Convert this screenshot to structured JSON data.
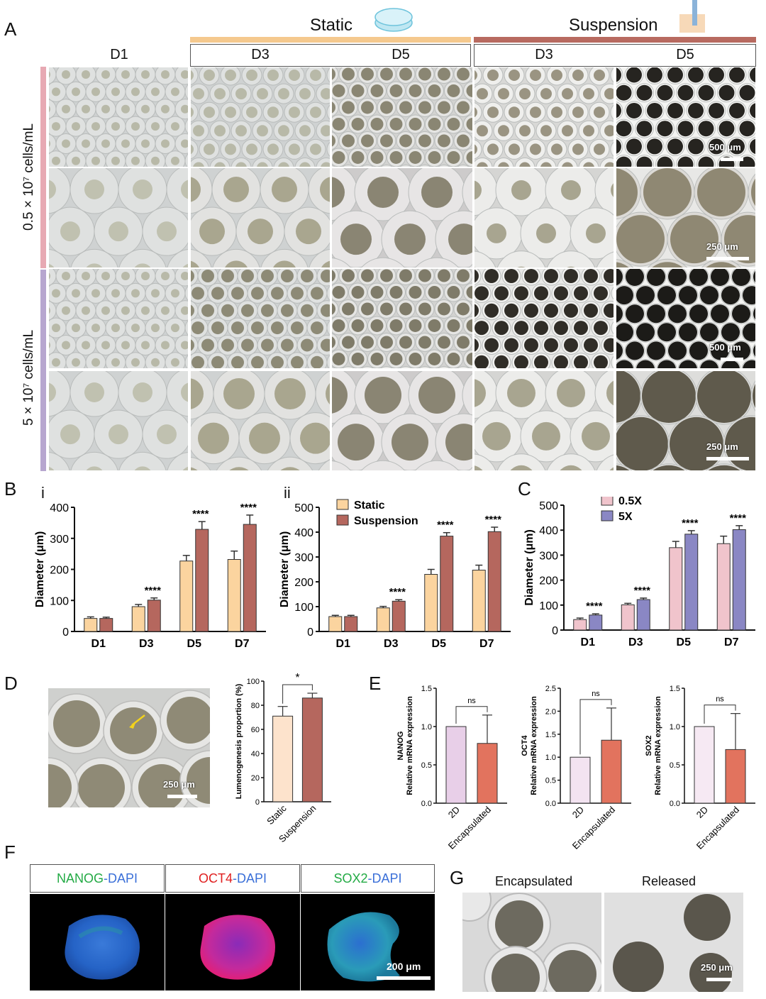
{
  "panels": {
    "A": "A",
    "B": "B",
    "B_i": "i",
    "B_ii": "ii",
    "C": "C",
    "D": "D",
    "E": "E",
    "F": "F",
    "G": "G"
  },
  "panelA": {
    "static_label": "Static",
    "suspension_label": "Suspension",
    "columns": [
      "D1",
      "D3",
      "D5",
      "D3",
      "D5"
    ],
    "row_labels": [
      "0.5 × 10⁷ cells/mL",
      "5 × 10⁷ cells/mL"
    ],
    "scalebars": [
      "500 μm",
      "250 μm",
      "500 μm",
      "250 μm"
    ],
    "colors": {
      "static": "#f5c98e",
      "suspension": "#b86a60",
      "row1": "#e7a9b3",
      "row2": "#b7a6cf"
    }
  },
  "panelD": {
    "scalebar": "250 μm"
  },
  "panelF": {
    "labels": [
      {
        "marker": "NANOG",
        "dapi": "-DAPI",
        "color": "#22aa44"
      },
      {
        "marker": "OCT4",
        "dapi": "-DAPI",
        "color": "#e02020"
      },
      {
        "marker": "SOX2",
        "dapi": "-DAPI",
        "color": "#22aa44"
      }
    ],
    "dapi_color": "#3a6fd8",
    "scalebar": "200 μm"
  },
  "panelG": {
    "labels": [
      "Encapsulated",
      "Released"
    ],
    "scalebar": "250 μm"
  },
  "chart_data": [
    {
      "id": "B-i",
      "type": "bar",
      "categories": [
        "D1",
        "D3",
        "D5",
        "D7"
      ],
      "ylabel": "Diameter (μm)",
      "ylim": [
        0,
        400
      ],
      "yticks": [
        0,
        100,
        200,
        300,
        400
      ],
      "series": [
        {
          "name": "Static",
          "color": "#fbd49f",
          "values": [
            42,
            80,
            227,
            232
          ],
          "err": [
            5,
            7,
            18,
            27
          ]
        },
        {
          "name": "Suspension",
          "color": "#b5675e",
          "values": [
            42,
            101,
            329,
            345
          ],
          "err": [
            4,
            7,
            25,
            30
          ]
        }
      ],
      "annotations": [
        "",
        "****",
        "****",
        "****"
      ]
    },
    {
      "id": "B-ii",
      "type": "bar",
      "categories": [
        "D1",
        "D3",
        "D5",
        "D7"
      ],
      "ylabel": "Diameter (μm)",
      "ylim": [
        0,
        500
      ],
      "yticks": [
        0,
        100,
        200,
        300,
        400,
        500
      ],
      "legend": "top-left",
      "series": [
        {
          "name": "Static",
          "color": "#fbd49f",
          "values": [
            60,
            95,
            230,
            247
          ],
          "err": [
            5,
            6,
            20,
            20
          ]
        },
        {
          "name": "Suspension",
          "color": "#b5675e",
          "values": [
            60,
            122,
            384,
            402
          ],
          "err": [
            5,
            6,
            14,
            18
          ]
        }
      ],
      "annotations": [
        "",
        "****",
        "****",
        "****"
      ]
    },
    {
      "id": "C",
      "type": "bar",
      "categories": [
        "D1",
        "D3",
        "D5",
        "D7"
      ],
      "ylabel": "Diameter (μm)",
      "ylim": [
        0,
        500
      ],
      "yticks": [
        0,
        100,
        200,
        300,
        400,
        500
      ],
      "legend": "top-left",
      "series": [
        {
          "name": "0.5X",
          "color": "#f0c4cc",
          "values": [
            42,
            101,
            330,
            346
          ],
          "err": [
            6,
            6,
            25,
            30
          ]
        },
        {
          "name": "5X",
          "color": "#8a87c4",
          "values": [
            60,
            122,
            384,
            402
          ],
          "err": [
            5,
            6,
            14,
            16
          ]
        }
      ],
      "annotations": [
        "****",
        "****",
        "****",
        "****"
      ]
    },
    {
      "id": "D",
      "type": "bar",
      "categories": [
        "Static",
        "Suspension"
      ],
      "ylabel": "Lumenogenesis proportion (%)",
      "ylim": [
        0,
        100
      ],
      "yticks": [
        0,
        20,
        40,
        60,
        80,
        100
      ],
      "colors": [
        "#fde3cc",
        "#b5675e"
      ],
      "values": [
        71,
        86
      ],
      "err": [
        8,
        4
      ],
      "significance": "*"
    },
    {
      "id": "E-NANOG",
      "type": "bar",
      "categories": [
        "2D",
        "Encapsulated"
      ],
      "ylabel": "Relative mRNA expression",
      "gene": "NANOG",
      "ylim": [
        0,
        1.5
      ],
      "yticks": [
        0.0,
        0.5,
        1.0,
        1.5
      ],
      "colors": [
        "#e8cfe8",
        "#e2735e"
      ],
      "values": [
        1.0,
        0.78
      ],
      "err": [
        0,
        0.37
      ],
      "significance": "ns"
    },
    {
      "id": "E-OCT4",
      "type": "bar",
      "categories": [
        "2D",
        "Encapsulated"
      ],
      "ylabel": "Relative mRNA expression",
      "gene": "OCT4",
      "ylim": [
        0,
        2.5
      ],
      "yticks": [
        0.0,
        0.5,
        1.0,
        1.5,
        2.0,
        2.5
      ],
      "colors": [
        "#f3e3f1",
        "#e2735e"
      ],
      "values": [
        1.0,
        1.37
      ],
      "err": [
        0,
        0.7
      ],
      "significance": "ns"
    },
    {
      "id": "E-SOX2",
      "type": "bar",
      "categories": [
        "2D",
        "Encapsulated"
      ],
      "ylabel": "Relative mRNA expression",
      "gene": "SOX2",
      "ylim": [
        0,
        1.5
      ],
      "yticks": [
        0.0,
        0.5,
        1.0,
        1.5
      ],
      "colors": [
        "#f6e9f3",
        "#e2735e"
      ],
      "values": [
        1.0,
        0.7
      ],
      "err": [
        0,
        0.47
      ],
      "significance": "ns"
    }
  ]
}
